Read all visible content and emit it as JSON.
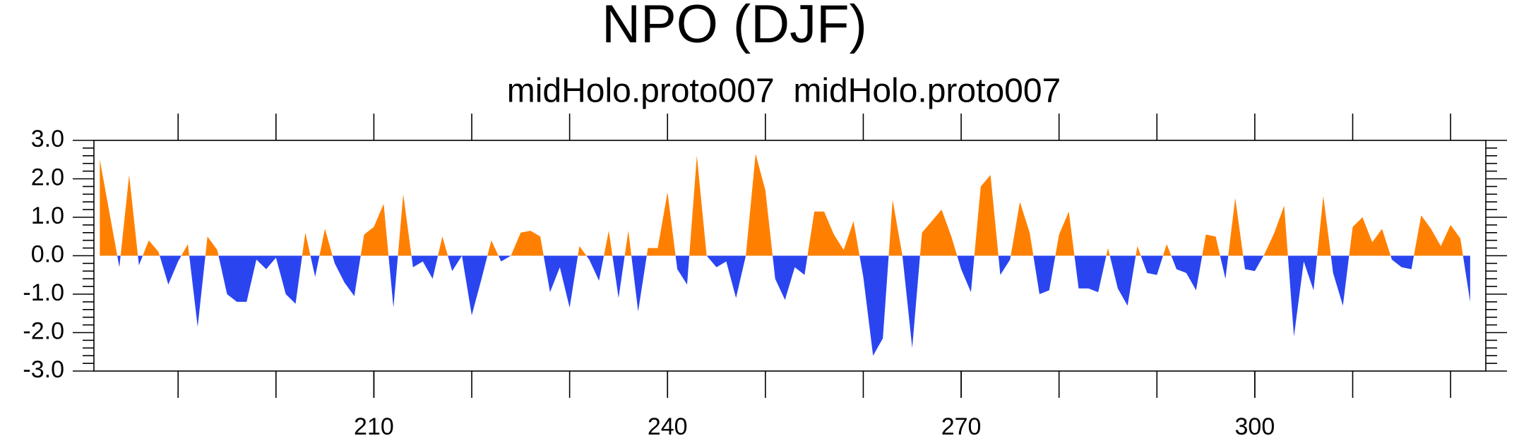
{
  "chart_data": {
    "type": "area",
    "title": "NPO (DJF)",
    "subtitle": "midHolo.proto007  midHolo.proto007",
    "x": [
      182,
      183,
      184,
      185,
      186,
      187,
      188,
      189,
      190,
      191,
      192,
      193,
      194,
      195,
      196,
      197,
      198,
      199,
      200,
      201,
      202,
      203,
      204,
      205,
      206,
      207,
      208,
      209,
      210,
      211,
      212,
      213,
      214,
      215,
      216,
      217,
      218,
      219,
      220,
      221,
      222,
      223,
      224,
      225,
      226,
      227,
      228,
      229,
      230,
      231,
      232,
      233,
      234,
      235,
      236,
      237,
      238,
      239,
      240,
      241,
      242,
      243,
      244,
      245,
      246,
      247,
      248,
      249,
      250,
      251,
      252,
      253,
      254,
      255,
      256,
      257,
      258,
      259,
      260,
      261,
      262,
      263,
      264,
      265,
      266,
      267,
      268,
      269,
      270,
      271,
      272,
      273,
      274,
      275,
      276,
      277,
      278,
      279,
      280,
      281,
      282,
      283,
      284,
      285,
      286,
      287,
      288,
      289,
      290,
      291,
      292,
      293,
      294,
      295,
      296,
      297,
      298,
      299,
      300,
      301,
      302,
      303,
      304,
      305,
      306,
      307,
      308,
      309,
      310,
      311,
      312,
      313,
      314,
      315,
      316,
      317,
      318,
      319,
      320,
      321,
      322
    ],
    "values": [
      2.5,
      1.1,
      -0.3,
      2.1,
      -0.25,
      0.4,
      0.1,
      -0.75,
      -0.15,
      0.3,
      -1.85,
      0.5,
      0.15,
      -1.0,
      -1.2,
      -1.2,
      -0.1,
      -0.35,
      -0.05,
      -1.0,
      -1.25,
      0.6,
      -0.55,
      0.7,
      -0.2,
      -0.7,
      -1.05,
      0.55,
      0.75,
      1.35,
      -1.35,
      1.6,
      -0.3,
      -0.15,
      -0.6,
      0.5,
      -0.4,
      0.0,
      -1.55,
      -0.6,
      0.4,
      -0.15,
      0.0,
      0.6,
      0.65,
      0.5,
      -0.95,
      -0.3,
      -1.35,
      0.25,
      -0.1,
      -0.65,
      0.65,
      -1.1,
      0.65,
      -1.45,
      0.2,
      0.2,
      1.65,
      -0.35,
      -0.75,
      2.6,
      0.0,
      -0.3,
      -0.15,
      -1.1,
      0.0,
      2.65,
      1.7,
      -0.6,
      -1.15,
      -0.3,
      -0.5,
      1.15,
      1.15,
      0.55,
      0.15,
      0.9,
      -0.55,
      -2.6,
      -2.15,
      1.45,
      0.0,
      -2.4,
      0.6,
      0.9,
      1.2,
      0.5,
      -0.35,
      -0.95,
      1.8,
      2.1,
      -0.5,
      -0.1,
      1.4,
      0.6,
      -1.0,
      -0.9,
      0.55,
      1.15,
      -0.85,
      -0.85,
      -0.95,
      0.2,
      -0.85,
      -1.3,
      0.25,
      -0.45,
      -0.5,
      0.3,
      -0.35,
      -0.45,
      -0.9,
      0.55,
      0.5,
      -0.6,
      1.5,
      -0.35,
      -0.4,
      0.05,
      0.6,
      1.3,
      -2.1,
      -0.15,
      -0.9,
      1.55,
      -0.45,
      -1.3,
      0.75,
      1.0,
      0.35,
      0.7,
      -0.1,
      -0.3,
      -0.35,
      1.05,
      0.7,
      0.25,
      0.8,
      0.45,
      -1.2
    ],
    "colors": {
      "positive": "#ff8000",
      "negative": "#2a45f0"
    },
    "xlim": [
      181.4,
      323.6
    ],
    "xticks": [
      210,
      240,
      270,
      300
    ],
    "xticks_minor": [
      190,
      200,
      210,
      220,
      230,
      240,
      250,
      260,
      270,
      280,
      290,
      300,
      310,
      320
    ],
    "ylim": [
      -3,
      3
    ],
    "yticks": [
      {
        "value": 3,
        "label": "3.0"
      },
      {
        "value": 2,
        "label": "2.0"
      },
      {
        "value": 1,
        "label": "1.0"
      },
      {
        "value": 0,
        "label": "0.0"
      },
      {
        "value": -1,
        "label": "-1.0"
      },
      {
        "value": -2,
        "label": "-2.0"
      },
      {
        "value": -3,
        "label": "-3.0"
      }
    ],
    "yticks_minor": [
      -2.8,
      -2.6,
      -2.4,
      -2.2,
      -1.8,
      -1.6,
      -1.4,
      -1.2,
      -0.8,
      -0.6,
      -0.4,
      -0.2,
      0.2,
      0.4,
      0.6,
      0.8,
      1.2,
      1.4,
      1.6,
      1.8,
      2.2,
      2.4,
      2.6,
      2.8
    ]
  }
}
